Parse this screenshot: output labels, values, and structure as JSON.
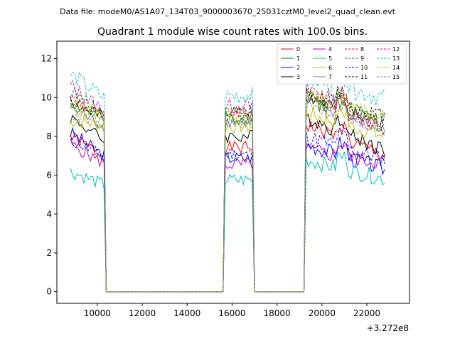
{
  "header": {
    "datafile": "Data file: modeM0/AS1A07_134T03_9000003670_25031cztM0_level2_quad_clean.evt"
  },
  "chart_data": {
    "type": "line",
    "title": "Quadrant 1 module wise count rates with 100.0s bins.",
    "xlabel": "",
    "ylabel": "",
    "x_offset_label": "+3.272e8",
    "xlim": [
      8200,
      23900
    ],
    "ylim": [
      -0.6,
      12.9
    ],
    "xticks": [
      10000,
      12000,
      14000,
      16000,
      18000,
      20000,
      22000
    ],
    "xtick_labels": [
      "10000",
      "12000",
      "14000",
      "16000",
      "18000",
      "20000",
      "22000"
    ],
    "yticks": [
      0,
      2,
      4,
      6,
      8,
      10,
      12
    ],
    "ytick_labels": [
      "0",
      "2",
      "4",
      "6",
      "8",
      "10",
      "12"
    ],
    "grid": false,
    "legend": {
      "placement": "top-right",
      "columns": 4
    },
    "segments": [
      {
        "start": 8800,
        "end": 10300,
        "drop_end": 10400
      },
      {
        "rise_start": 15600,
        "start": 15700,
        "end": 16900,
        "drop_end": 17000
      },
      {
        "rise_start": 19200,
        "start": 19300,
        "end": 22800,
        "drop_end": 22800
      }
    ],
    "gap_level": 0,
    "series": [
      {
        "name": "0",
        "color": "#ff0000",
        "dashed": false,
        "levels": [
          8.0,
          7.0,
          8.6,
          7.0
        ]
      },
      {
        "name": "1",
        "color": "#008000",
        "dashed": false,
        "levels": [
          9.8,
          8.8,
          9.9,
          8.8
        ]
      },
      {
        "name": "2",
        "color": "#0000ff",
        "dashed": false,
        "levels": [
          8.2,
          7.0,
          7.6,
          6.3
        ]
      },
      {
        "name": "3",
        "color": "#000000",
        "dashed": false,
        "levels": [
          9.0,
          7.8,
          9.0,
          7.3
        ]
      },
      {
        "name": "4",
        "color": "#bf00bf",
        "dashed": false,
        "levels": [
          7.6,
          6.6,
          7.3,
          6.6
        ]
      },
      {
        "name": "5",
        "color": "#00bfbf",
        "dashed": false,
        "levels": [
          6.2,
          5.5,
          6.8,
          5.8
        ]
      },
      {
        "name": "6",
        "color": "#bfbf00",
        "dashed": false,
        "levels": [
          8.8,
          8.6,
          9.2,
          8.0
        ]
      },
      {
        "name": "7",
        "color": "#7f7f7f",
        "dashed": false,
        "levels": [
          9.5,
          8.5,
          9.8,
          8.3
        ]
      },
      {
        "name": "8",
        "color": "#ff0000",
        "dashed": true,
        "levels": [
          10.0,
          9.0,
          10.2,
          8.5
        ]
      },
      {
        "name": "9",
        "color": "#008000",
        "dashed": true,
        "levels": [
          10.3,
          9.2,
          10.1,
          8.6
        ]
      },
      {
        "name": "10",
        "color": "#0000ff",
        "dashed": true,
        "levels": [
          7.8,
          7.0,
          8.0,
          6.8
        ]
      },
      {
        "name": "11",
        "color": "#000000",
        "dashed": true,
        "levels": [
          9.9,
          9.0,
          10.2,
          9.0
        ]
      },
      {
        "name": "12",
        "color": "#bf00bf",
        "dashed": true,
        "levels": [
          10.6,
          9.3,
          10.6,
          8.2
        ]
      },
      {
        "name": "13",
        "color": "#00bfbf",
        "dashed": true,
        "levels": [
          11.2,
          10.0,
          11.0,
          10.0
        ]
      },
      {
        "name": "14",
        "color": "#bfbf00",
        "dashed": true,
        "levels": [
          9.6,
          9.0,
          10.1,
          8.9
        ]
      },
      {
        "name": "15",
        "color": "#7f7f7f",
        "dashed": true,
        "levels": [
          9.1,
          8.7,
          9.6,
          8.4
        ]
      }
    ]
  }
}
